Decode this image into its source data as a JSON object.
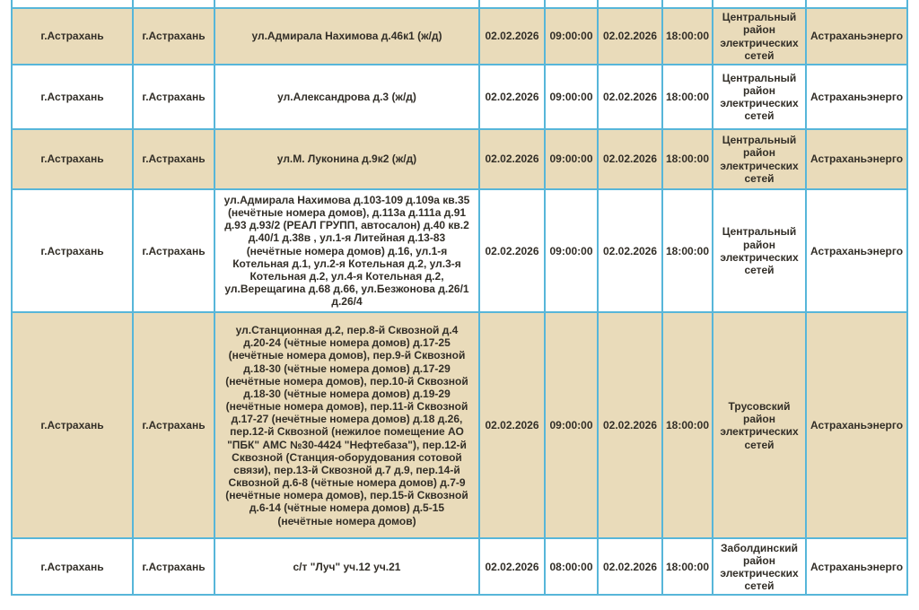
{
  "colors": {
    "grid_border": "#57b6d9",
    "row_shaded_bg": "#e9dbba",
    "row_plain_bg": "#ffffff",
    "text": "#322e27"
  },
  "table": {
    "columns": [
      "region-city",
      "settlement",
      "address",
      "start-date",
      "start-time",
      "end-date",
      "end-time",
      "district",
      "company"
    ],
    "rows": [
      {
        "shaded": true,
        "cells": [
          "г.Астрахань",
          "г.Астрахань",
          "ул.Адмирала Нахимова д.46к1 (ж/д)",
          "02.02.2026",
          "09:00:00",
          "02.02.2026",
          "18:00:00",
          "Центральный район электрических сетей",
          "Астраханьэнерго"
        ]
      },
      {
        "shaded": false,
        "cells": [
          "г.Астрахань",
          "г.Астрахань",
          "ул.Александрова д.3 (ж/д)",
          "02.02.2026",
          "09:00:00",
          "02.02.2026",
          "18:00:00",
          "Центральный район электрических сетей",
          "Астраханьэнерго"
        ]
      },
      {
        "shaded": true,
        "cells": [
          "г.Астрахань",
          "г.Астрахань",
          "ул.М. Луконина д.9к2 (ж/д)",
          "02.02.2026",
          "09:00:00",
          "02.02.2026",
          "18:00:00",
          "Центральный район электрических сетей",
          "Астраханьэнерго"
        ]
      },
      {
        "shaded": false,
        "cells": [
          "г.Астрахань",
          "г.Астрахань",
          "ул.Адмирала Нахимова д.103-109 д.109а кв.35 (нечётные номера домов), д.113а д.111а д.91 д.93 д.93/2 (РЕАЛ ГРУПП, автосалон) д.40 кв.2 д.40/1 д.38в , ул.1-я Литейная д.13-83 (нечётные номера домов) д.16, ул.1-я Котельная д.1, ул.2-я Котельная д.2, ул.3-я Котельная д.2, ул.4-я Котельная д.2, ул.Верещагина д.68 д.66, ул.Безжонова д.26/1 д.26/4",
          "02.02.2026",
          "09:00:00",
          "02.02.2026",
          "18:00:00",
          "Центральный район электрических сетей",
          "Астраханьэнерго"
        ]
      },
      {
        "shaded": true,
        "cells": [
          "г.Астрахань",
          "г.Астрахань",
          "ул.Станционная д.2, пер.8-й Сквозной д.4 д.20-24 (чётные номера домов) д.17-25 (нечётные номера домов), пер.9-й Сквозной д.18-30 (чётные номера домов) д.17-29 (нечётные номера домов), пер.10-й Сквозной д.18-30 (чётные номера домов) д.19-29 (нечётные номера домов), пер.11-й Сквозной д.17-27 (нечётные номера домов) д.18 д.26, пер.12-й Сквозной (нежилое помещение АО \"ПБК\" АМС №30-4424 \"Нефтебаза\"), пер.12-й Сквозной (Станция-оборудования сотовой связи), пер.13-й Сквозной д.7 д.9, пер.14-й Сквозной д.6-8 (чётные номера домов) д.7-9 (нечётные номера домов), пер.15-й Сквозной д.6-14 (чётные номера домов) д.5-15 (нечётные номера домов)",
          "02.02.2026",
          "09:00:00",
          "02.02.2026",
          "18:00:00",
          "Трусовский район электрических сетей",
          "Астраханьэнерго"
        ]
      },
      {
        "shaded": false,
        "cells": [
          "г.Астрахань",
          "г.Астрахань",
          "с/т \"Луч\" уч.12 уч.21",
          "02.02.2026",
          "08:00:00",
          "02.02.2026",
          "18:00:00",
          "Заболдинский район электрических сетей",
          "Астраханьэнерго"
        ]
      }
    ]
  }
}
